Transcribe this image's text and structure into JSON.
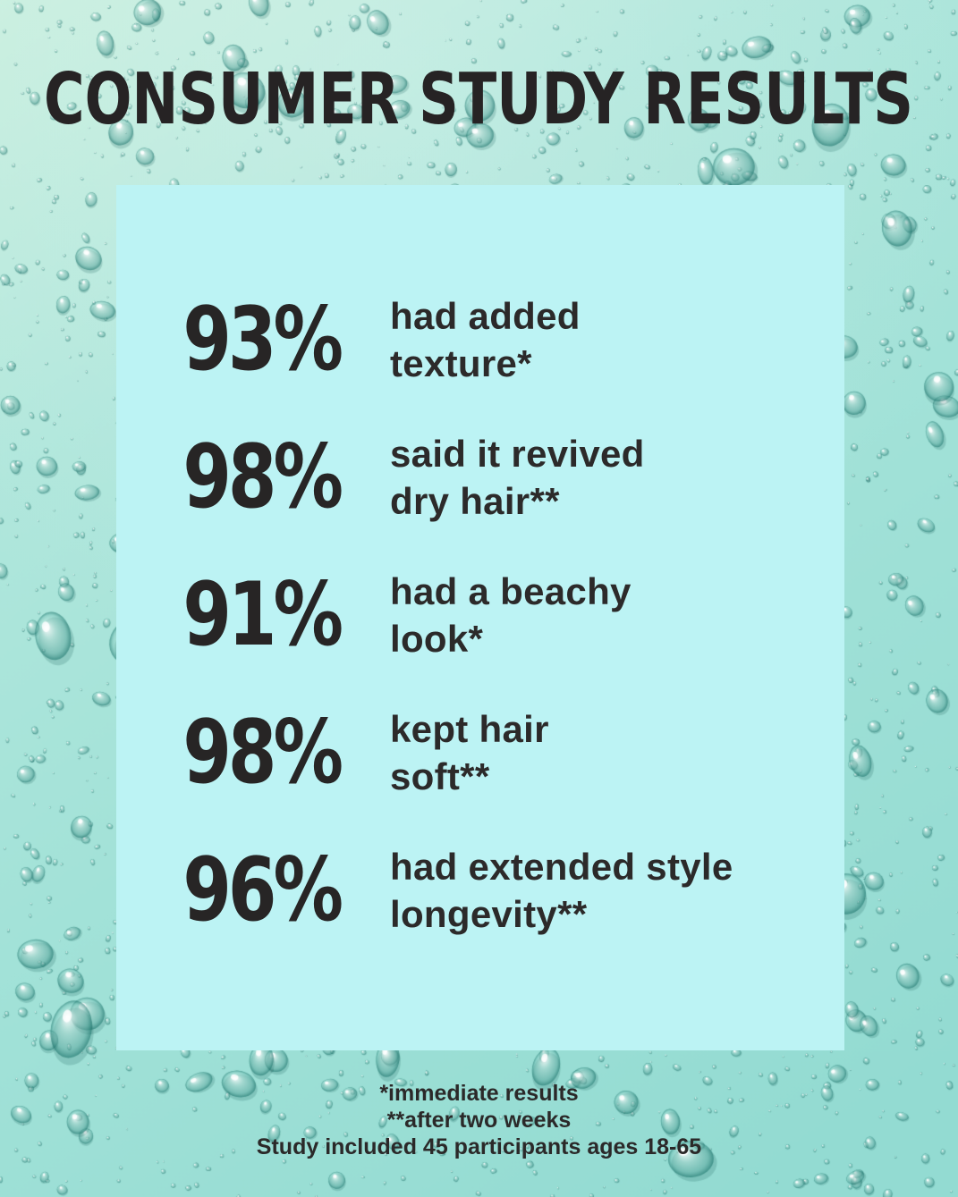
{
  "title": "CONSUMER STUDY RESULTS",
  "stats": [
    {
      "value": "93%",
      "lines": [
        "had added",
        "texture*"
      ]
    },
    {
      "value": "98%",
      "lines": [
        "said it revived",
        "dry hair**"
      ]
    },
    {
      "value": "91%",
      "lines": [
        "had a beachy",
        "look*"
      ]
    },
    {
      "value": "98%",
      "lines": [
        "kept hair",
        "soft**"
      ]
    },
    {
      "value": "96%",
      "lines": [
        "had extended style",
        "longevity**"
      ]
    }
  ],
  "footnotes": [
    "*immediate results",
    "**after two weeks",
    "Study included 45 participants ages 18-65"
  ],
  "colors": {
    "background_light": "#c8efdf",
    "background_base": "#a2e2d8",
    "background_deep": "#93dbd2",
    "panel": "#bcf3f4",
    "text_dark": "#272525",
    "droplet_shadow": "#176a62",
    "droplet_highlight": "#ffffff"
  },
  "chart_data": {
    "type": "table",
    "title": "CONSUMER STUDY RESULTS",
    "categories": [
      "had added texture*",
      "said it revived dry hair**",
      "had a beachy look*",
      "kept hair soft**",
      "had extended style longevity**"
    ],
    "values": [
      93,
      98,
      91,
      98,
      96
    ],
    "unit": "%",
    "value_range": [
      0,
      100
    ],
    "footnotes": [
      "*immediate results",
      "**after two weeks",
      "Study included 45 participants ages 18-65"
    ]
  }
}
